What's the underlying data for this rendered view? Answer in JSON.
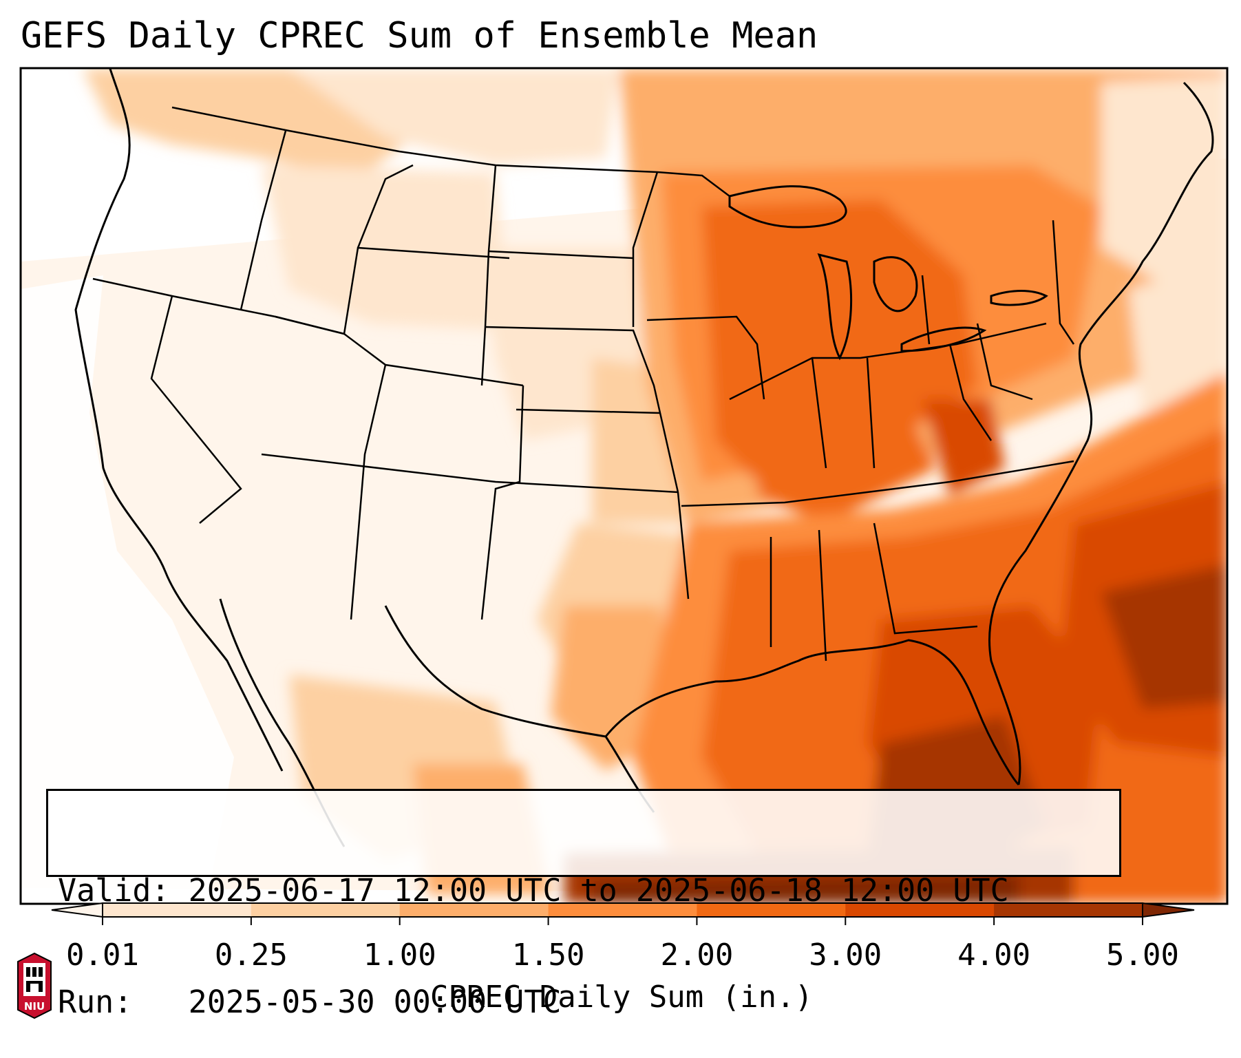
{
  "title": "GEFS Daily CPREC Sum of Ensemble Mean",
  "info": {
    "valid_line": "Valid: 2025-06-17 12:00 UTC to 2025-06-18 12:00 UTC",
    "run_line": "Run:   2025-05-30 00:00 UTC"
  },
  "colorbar": {
    "title": "CPREC Daily Sum (in.)",
    "ticks": [
      "0.01",
      "0.25",
      "1.00",
      "1.50",
      "2.00",
      "3.00",
      "4.00",
      "5.00"
    ],
    "colors": [
      "#fff5eb",
      "#fee6ce",
      "#fdd0a2",
      "#fdae6b",
      "#fd8d3c",
      "#f16913",
      "#d94801",
      "#a63603",
      "#7f2704"
    ]
  },
  "logo": {
    "text": "NIU"
  },
  "colors": {
    "very_light": "#fff5eb",
    "light": "#fee6ce",
    "light_orange": "#fdd0a2",
    "orange": "#fdae6b",
    "mid_orange": "#fd8d3c",
    "dark_orange": "#f16913",
    "darker": "#d94801",
    "brown": "#a63603",
    "dark_brown": "#7f2704"
  }
}
